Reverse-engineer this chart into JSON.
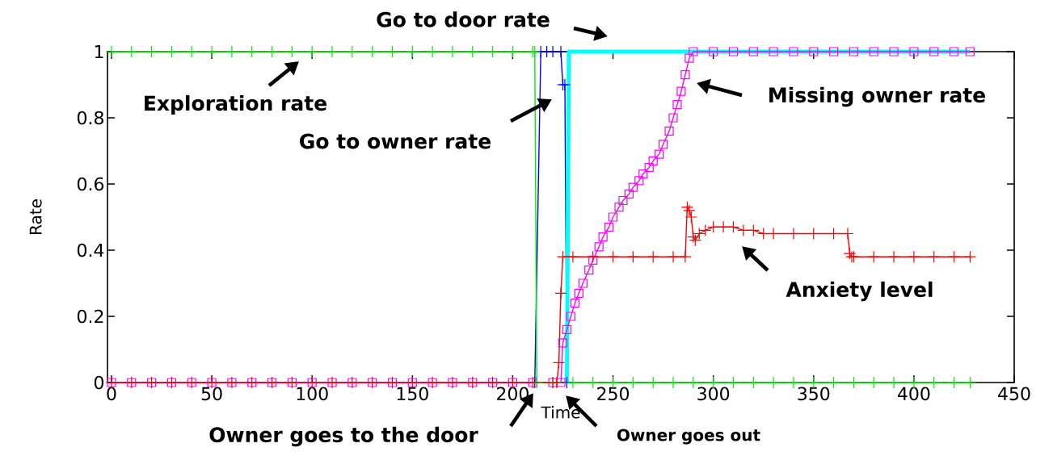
{
  "chart_data": {
    "type": "line",
    "xlabel": "Time",
    "ylabel": "Rate",
    "xlim": [
      -2,
      450
    ],
    "ylim": [
      0,
      1
    ],
    "xticks": [
      0,
      50,
      100,
      150,
      200,
      250,
      300,
      350,
      400,
      450
    ],
    "yticks": [
      0,
      0.2,
      0.4,
      0.6,
      0.8,
      1
    ],
    "series": [
      {
        "color": "#0000ff",
        "marker": "cross",
        "x": [
          211,
          214,
          217,
          220,
          224,
          225,
          226,
          227
        ],
        "values": [
          0,
          1,
          1,
          1,
          1,
          0.9,
          0.9,
          0
        ]
      },
      {
        "color": "#00ffff",
        "marker": "none",
        "x": [
          227,
          228,
          240,
          260,
          280,
          300,
          320,
          340,
          360,
          380,
          400,
          420,
          428
        ],
        "values": [
          0,
          1,
          1,
          1,
          1,
          1,
          1,
          1,
          1,
          1,
          1,
          1,
          1
        ]
      },
      {
        "color": "#ff00ff",
        "marker": "square",
        "x": [
          0,
          10,
          20,
          30,
          40,
          50,
          60,
          70,
          80,
          90,
          100,
          110,
          120,
          130,
          140,
          150,
          160,
          170,
          180,
          190,
          200,
          210,
          220,
          224,
          225,
          227,
          229,
          231,
          233,
          235,
          238,
          240,
          243,
          245,
          248,
          250,
          253,
          255,
          258,
          260,
          263,
          265,
          268,
          270,
          273,
          275,
          278,
          280,
          282,
          284,
          286,
          288,
          290,
          300,
          310,
          320,
          330,
          340,
          350,
          360,
          370,
          380,
          390,
          400,
          410,
          420,
          428
        ],
        "values": [
          0,
          0,
          0,
          0,
          0,
          0,
          0,
          0,
          0,
          0,
          0,
          0,
          0,
          0,
          0,
          0,
          0,
          0,
          0,
          0,
          0,
          0,
          0,
          0,
          0.12,
          0.16,
          0.2,
          0.24,
          0.27,
          0.3,
          0.34,
          0.37,
          0.41,
          0.44,
          0.47,
          0.5,
          0.53,
          0.55,
          0.57,
          0.59,
          0.61,
          0.63,
          0.65,
          0.67,
          0.69,
          0.72,
          0.76,
          0.8,
          0.84,
          0.88,
          0.93,
          0.98,
          1,
          1,
          1,
          1,
          1,
          1,
          1,
          1,
          1,
          1,
          1,
          1,
          1,
          1,
          1
        ]
      },
      {
        "color": "#00ee00",
        "marker": "cross",
        "x": [
          0,
          10,
          20,
          30,
          40,
          50,
          60,
          70,
          80,
          90,
          100,
          110,
          120,
          130,
          140,
          150,
          160,
          170,
          180,
          190,
          200,
          210,
          211,
          212,
          220,
          230,
          240,
          250,
          260,
          270,
          280,
          290,
          300,
          310,
          320,
          330,
          340,
          350,
          360,
          370,
          380,
          390,
          400,
          410,
          420,
          428
        ],
        "values": [
          1,
          1,
          1,
          1,
          1,
          1,
          1,
          1,
          1,
          1,
          1,
          1,
          1,
          1,
          1,
          1,
          1,
          1,
          1,
          1,
          1,
          1,
          1,
          0,
          0,
          0,
          0,
          0,
          0,
          0,
          0,
          0,
          0,
          0,
          0,
          0,
          0,
          0,
          0,
          0,
          0,
          0,
          0,
          0,
          0,
          0
        ]
      },
      {
        "color": "#ff0000",
        "marker": "cross",
        "x": [
          0,
          10,
          20,
          30,
          40,
          50,
          60,
          70,
          80,
          90,
          100,
          110,
          120,
          130,
          140,
          150,
          160,
          170,
          180,
          190,
          200,
          210,
          220,
          222,
          223,
          224,
          225,
          230,
          240,
          250,
          260,
          270,
          280,
          286,
          287,
          288,
          289,
          290,
          291,
          293,
          296,
          300,
          305,
          310,
          315,
          320,
          325,
          330,
          340,
          350,
          360,
          367,
          368,
          369,
          370,
          380,
          390,
          400,
          410,
          420,
          428
        ],
        "values": [
          0,
          0,
          0,
          0,
          0,
          0,
          0,
          0,
          0,
          0,
          0,
          0,
          0,
          0,
          0,
          0,
          0,
          0,
          0,
          0,
          0,
          0,
          0,
          0,
          0.06,
          0.27,
          0.38,
          0.38,
          0.38,
          0.38,
          0.38,
          0.38,
          0.38,
          0.38,
          0.53,
          0.52,
          0.5,
          0.44,
          0.43,
          0.45,
          0.46,
          0.47,
          0.47,
          0.47,
          0.46,
          0.46,
          0.45,
          0.45,
          0.45,
          0.45,
          0.45,
          0.45,
          0.39,
          0.38,
          0.38,
          0.38,
          0.38,
          0.38,
          0.38,
          0.38,
          0.38
        ]
      }
    ],
    "annotations": [
      "Exploration rate",
      "Go to owner rate",
      "Go to door rate",
      "Missing owner rate",
      "Anxiety level",
      "Owner goes to the door",
      "Owner goes out"
    ]
  }
}
